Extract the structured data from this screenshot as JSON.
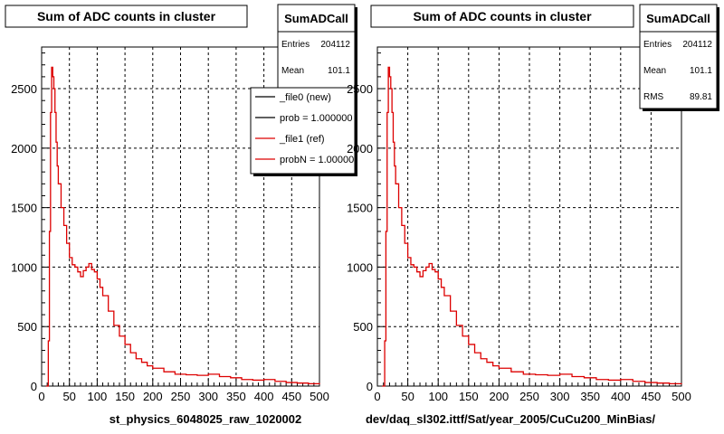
{
  "chart_data": [
    {
      "type": "line",
      "title": "Sum of ADC counts in cluster",
      "xlabel": "st_physics_6048025_raw_1020002",
      "ylabel": "",
      "xlim": [
        0,
        500
      ],
      "ylim": [
        0,
        2850
      ],
      "grid": true,
      "x_ticks": [
        "0",
        "50",
        "100",
        "150",
        "200",
        "250",
        "300",
        "350",
        "400",
        "450",
        "500"
      ],
      "y_ticks": [
        "0",
        "500",
        "1000",
        "1500",
        "2000",
        "2500"
      ],
      "stats": {
        "name": "SumADCall",
        "rows": [
          {
            "label": "Entries",
            "value": "204112"
          },
          {
            "label": "Mean",
            "value": "101.1"
          }
        ]
      },
      "legend": {
        "placement": "top-right",
        "entries": [
          {
            "text": "_file0 (new)",
            "color": "#000000"
          },
          {
            "text": "prob = 1.000000",
            "color": "#000000"
          },
          {
            "text": "_file1 (ref)",
            "color": "#dd0000"
          },
          {
            "text": "probN = 1.000000",
            "color": "#dd0000"
          }
        ]
      },
      "series": [
        {
          "name": "_file1 (ref)",
          "color": "#dd0000",
          "x": [
            8,
            10,
            12,
            14,
            16,
            18,
            20,
            22,
            24,
            26,
            28,
            30,
            35,
            40,
            45,
            50,
            55,
            60,
            65,
            70,
            75,
            80,
            85,
            90,
            95,
            100,
            105,
            110,
            120,
            130,
            140,
            150,
            160,
            170,
            180,
            190,
            200,
            220,
            240,
            260,
            280,
            300,
            320,
            340,
            360,
            380,
            400,
            420,
            440,
            460,
            480,
            500
          ],
          "values": [
            0,
            0,
            380,
            1300,
            2300,
            2680,
            2600,
            2500,
            2300,
            2050,
            1850,
            1700,
            1500,
            1350,
            1200,
            1080,
            1020,
            1000,
            960,
            920,
            970,
            1000,
            1030,
            980,
            960,
            900,
            830,
            760,
            630,
            510,
            420,
            350,
            280,
            230,
            200,
            170,
            150,
            120,
            100,
            95,
            90,
            100,
            80,
            70,
            55,
            50,
            55,
            40,
            30,
            25,
            20,
            15
          ]
        }
      ]
    },
    {
      "type": "line",
      "title": "Sum of ADC counts in cluster",
      "xlabel": "dev/daq_sl302.ittf/Sat/year_2005/CuCu200_MinBias/",
      "ylabel": "",
      "xlim": [
        0,
        500
      ],
      "ylim": [
        0,
        2850
      ],
      "grid": true,
      "x_ticks": [
        "0",
        "50",
        "100",
        "150",
        "200",
        "250",
        "300",
        "350",
        "400",
        "450",
        "500"
      ],
      "y_ticks": [
        "0",
        "500",
        "1000",
        "1500",
        "2000",
        "2500"
      ],
      "stats": {
        "name": "SumADCall",
        "rows": [
          {
            "label": "Entries",
            "value": "204112"
          },
          {
            "label": "Mean",
            "value": "101.1"
          },
          {
            "label": "RMS",
            "value": "89.81"
          }
        ]
      },
      "series": [
        {
          "name": "",
          "color": "#dd0000",
          "x": [
            8,
            10,
            12,
            14,
            16,
            18,
            20,
            22,
            24,
            26,
            28,
            30,
            35,
            40,
            45,
            50,
            55,
            60,
            65,
            70,
            75,
            80,
            85,
            90,
            95,
            100,
            105,
            110,
            120,
            130,
            140,
            150,
            160,
            170,
            180,
            190,
            200,
            220,
            240,
            260,
            280,
            300,
            320,
            340,
            360,
            380,
            400,
            420,
            440,
            460,
            480,
            500
          ],
          "values": [
            0,
            0,
            380,
            1300,
            2300,
            2680,
            2600,
            2500,
            2300,
            2050,
            1850,
            1700,
            1500,
            1350,
            1200,
            1080,
            1020,
            1000,
            960,
            920,
            970,
            1000,
            1030,
            980,
            960,
            900,
            830,
            760,
            630,
            510,
            420,
            350,
            280,
            230,
            200,
            170,
            150,
            120,
            100,
            95,
            90,
            100,
            80,
            70,
            55,
            50,
            55,
            40,
            30,
            25,
            20,
            15
          ]
        }
      ]
    }
  ]
}
